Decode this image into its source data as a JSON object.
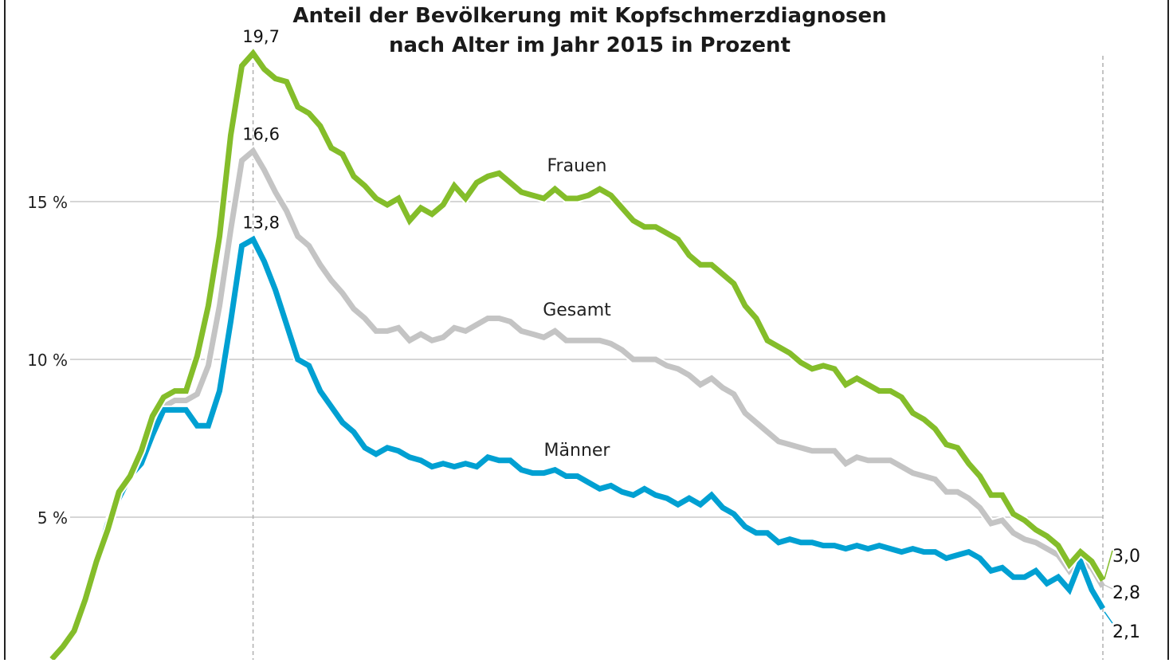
{
  "chart_data": {
    "type": "line",
    "title_lines": [
      "Anteil der Bevölkerung mit Kopfschmerzdiagnosen",
      "nach Alter im Jahr 2015 in Prozent"
    ],
    "xlabel": "",
    "ylabel": "",
    "x_range": [
      0,
      94
    ],
    "ylim": [
      0,
      21.4
    ],
    "yticks": [
      {
        "value": 5,
        "label": "5 %"
      },
      {
        "value": 10,
        "label": "10 %"
      },
      {
        "value": 15,
        "label": "15 %"
      }
    ],
    "grid": true,
    "peak_index": 18,
    "series": [
      {
        "name": "Frauen",
        "color": "#84bd2a",
        "peak_label": "19,7",
        "end_label": "3,0",
        "values": [
          0.5,
          0.9,
          1.4,
          2.4,
          3.6,
          4.6,
          5.8,
          6.3,
          7.1,
          8.2,
          8.8,
          9.0,
          9.0,
          10.1,
          11.7,
          13.9,
          17.1,
          19.3,
          19.7,
          19.2,
          18.9,
          18.8,
          18.0,
          17.8,
          17.4,
          16.7,
          16.5,
          15.8,
          15.5,
          15.1,
          14.9,
          15.1,
          14.4,
          14.8,
          14.6,
          14.9,
          15.5,
          15.1,
          15.6,
          15.8,
          15.9,
          15.6,
          15.3,
          15.2,
          15.1,
          15.4,
          15.1,
          15.1,
          15.2,
          15.4,
          15.2,
          14.8,
          14.4,
          14.2,
          14.2,
          14.0,
          13.8,
          13.3,
          13.0,
          13.0,
          12.7,
          12.4,
          11.7,
          11.3,
          10.6,
          10.4,
          10.2,
          9.9,
          9.7,
          9.8,
          9.7,
          9.2,
          9.4,
          9.2,
          9.0,
          9.0,
          8.8,
          8.3,
          8.1,
          7.8,
          7.3,
          7.2,
          6.7,
          6.3,
          5.7,
          5.7,
          5.1,
          4.9,
          4.6,
          4.4,
          4.1,
          3.5,
          3.9,
          3.6,
          3.0
        ]
      },
      {
        "name": "Gesamt",
        "color": "#c4c4c4",
        "peak_label": "16,6",
        "end_label": "2,8",
        "values": [
          0.5,
          0.9,
          1.4,
          2.4,
          3.6,
          4.6,
          5.8,
          6.3,
          7.0,
          8.0,
          8.5,
          8.7,
          8.7,
          8.9,
          9.8,
          11.7,
          14.1,
          16.3,
          16.6,
          16.0,
          15.3,
          14.7,
          13.9,
          13.6,
          13.0,
          12.5,
          12.1,
          11.6,
          11.3,
          10.9,
          10.9,
          11.0,
          10.6,
          10.8,
          10.6,
          10.7,
          11.0,
          10.9,
          11.1,
          11.3,
          11.3,
          11.2,
          10.9,
          10.8,
          10.7,
          10.9,
          10.6,
          10.6,
          10.6,
          10.6,
          10.5,
          10.3,
          10.0,
          10.0,
          10.0,
          9.8,
          9.7,
          9.5,
          9.2,
          9.4,
          9.1,
          8.9,
          8.3,
          8.0,
          7.7,
          7.4,
          7.3,
          7.2,
          7.1,
          7.1,
          7.1,
          6.7,
          6.9,
          6.8,
          6.8,
          6.8,
          6.6,
          6.4,
          6.3,
          6.2,
          5.8,
          5.8,
          5.6,
          5.3,
          4.8,
          4.9,
          4.5,
          4.3,
          4.2,
          4.0,
          3.8,
          3.3,
          3.7,
          3.4,
          2.8
        ]
      },
      {
        "name": "Männer",
        "color": "#00a0d2",
        "peak_label": "13,8",
        "end_label": "2,1",
        "values": [
          0.5,
          0.9,
          1.4,
          2.4,
          3.6,
          4.8,
          5.6,
          6.3,
          6.7,
          7.6,
          8.4,
          8.4,
          8.4,
          7.9,
          7.9,
          9.0,
          11.2,
          13.6,
          13.8,
          13.1,
          12.2,
          11.1,
          10.0,
          9.8,
          9.0,
          8.5,
          8.0,
          7.7,
          7.2,
          7.0,
          7.2,
          7.1,
          6.9,
          6.8,
          6.6,
          6.7,
          6.6,
          6.7,
          6.6,
          6.9,
          6.8,
          6.8,
          6.5,
          6.4,
          6.4,
          6.5,
          6.3,
          6.3,
          6.1,
          5.9,
          6.0,
          5.8,
          5.7,
          5.9,
          5.7,
          5.6,
          5.4,
          5.6,
          5.4,
          5.7,
          5.3,
          5.1,
          4.7,
          4.5,
          4.5,
          4.2,
          4.3,
          4.2,
          4.2,
          4.1,
          4.1,
          4.0,
          4.1,
          4.0,
          4.1,
          4.0,
          3.9,
          4.0,
          3.9,
          3.9,
          3.7,
          3.8,
          3.9,
          3.7,
          3.3,
          3.4,
          3.1,
          3.1,
          3.3,
          2.9,
          3.1,
          2.7,
          3.6,
          2.7,
          2.1
        ]
      }
    ]
  }
}
